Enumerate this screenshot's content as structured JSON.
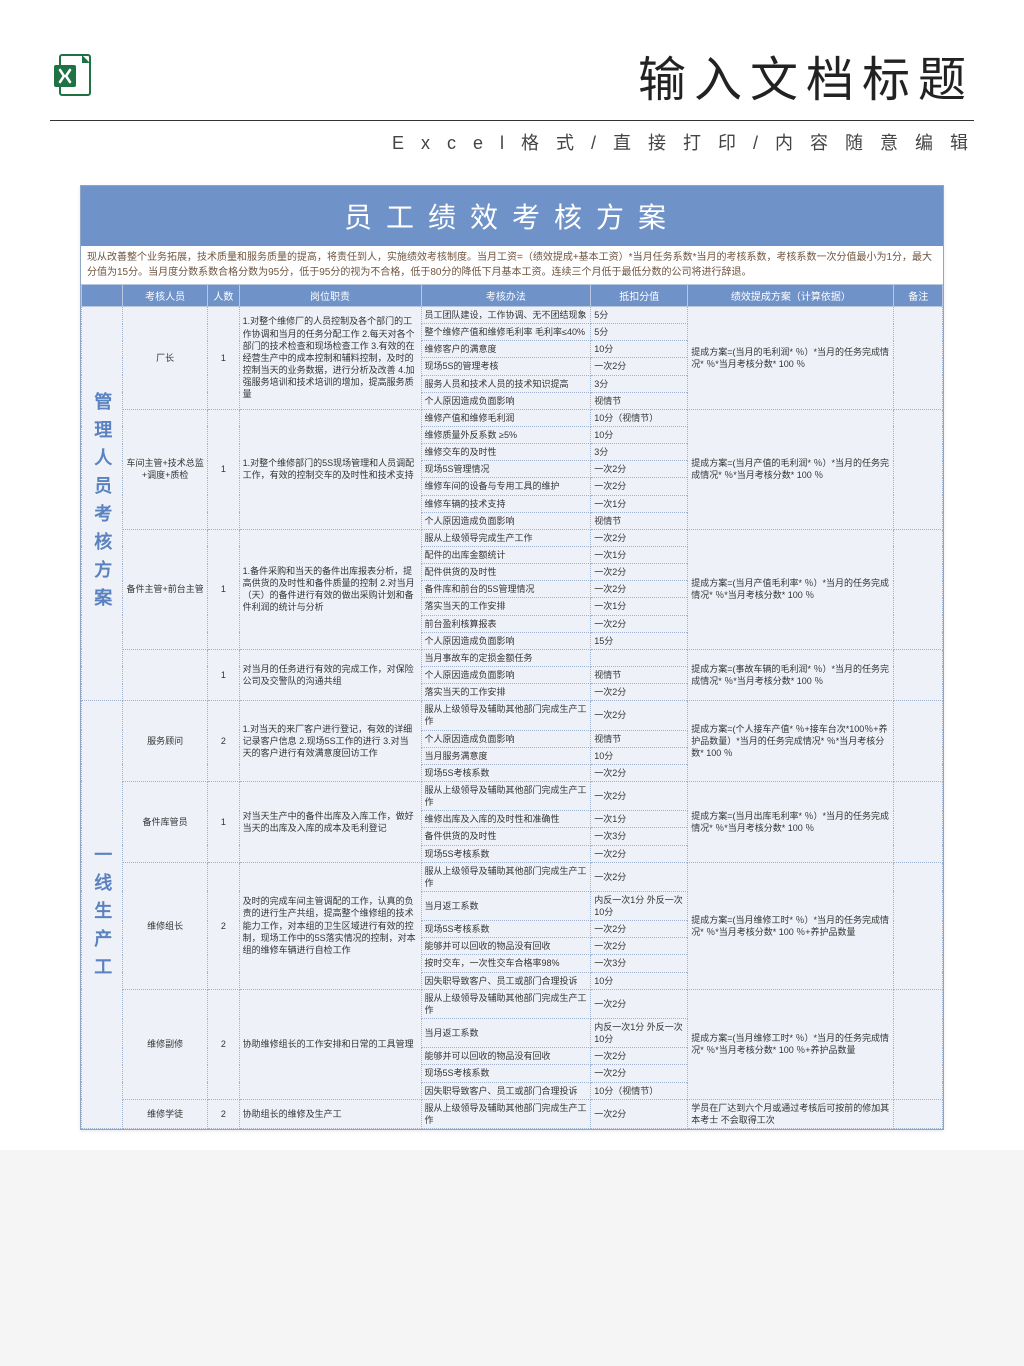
{
  "header": {
    "title": "输入文档标题",
    "subtitle": "E x c e l 格 式 / 直 接 打 印 / 内 容 随 意 编 辑"
  },
  "banner": "员工绩效考核方案",
  "intro": "现从改善整个业务拓展，技术质量和服务质量的提高，将责任到人，实施绩效考核制度。当月工资=（绩效提成+基本工资）*当月任务系数*当月的考核系数，考核系数一次分值最小为1分，最大分值为15分。当月度分数系数合格分数为95分，低于95分的视为不合格，低于80分的降低下月基本工资。连续三个月低于最低分数的公司将进行辞退。",
  "headers": [
    "考核人员",
    "人数",
    "岗位职责",
    "考核办法",
    "抵扣分值",
    "绩效提成方案（计算依据）",
    "备注"
  ],
  "sections": [
    {
      "group": "管理人员考核方案",
      "rows": [
        {
          "role": "厂长",
          "num": "1",
          "resp": "1.对整个维修厂的人员控制及各个部门的工作协调和当月的任务分配工作 2.每天对各个部门的技术检查和现场检查工作 3.有效的在经营生产中的成本控制和辅料控制，及时的控制当天的业务数据，进行分析及改善 4.加强服务培训和技术培训的增加，提高服务质量",
          "items": [
            [
              "员工团队建设，工作协调、无不团结现象",
              "5分"
            ],
            [
              "整个维修产值和维修毛利率 毛利率≤40%",
              "5分"
            ],
            [
              "维修客户的满意度",
              "10分"
            ],
            [
              "现场5S的管理考核",
              "一次2分"
            ],
            [
              "服务人员和技术人员的技术知识提高",
              "3分"
            ],
            [
              "个人原因造成负面影响",
              "视情节"
            ]
          ],
          "plan": "提成方案=(当月的毛利润* ％）*当月的任务完成情况* ％*当月考核分数* 100 ％"
        },
        {
          "role": "车间主管+技术总监+调度+质检",
          "num": "1",
          "resp": "1.对整个维修部门的5S现场管理和人员调配工作，有效的控制交车的及时性和技术支持",
          "items": [
            [
              "维修产值和维修毛利润",
              "10分（视情节）"
            ],
            [
              "维修质量外反系数 ≥5%",
              "10分"
            ],
            [
              "维修交车的及时性",
              "3分"
            ],
            [
              "现场5S管理情况",
              "一次2分"
            ],
            [
              "维修车间的设备与专用工具的维护",
              "一次2分"
            ],
            [
              "维修车辆的技术支持",
              "一次1分"
            ],
            [
              "个人原因造成负面影响",
              "视情节"
            ]
          ],
          "plan": "提成方案=(当月产值的毛利润* ％）*当月的任务完成情况* ％*当月考核分数* 100 ％"
        },
        {
          "role": "备件主管+前台主管",
          "num": "1",
          "resp": "1.备件采购和当天的备件出库报表分析，提高供货的及时性和备件质量的控制  2.对当月（天）的备件进行有效的做出采购计划和备件利润的统计与分析",
          "items": [
            [
              "服从上级领导完成生产工作",
              "一次2分"
            ],
            [
              "配件的出库金额统计",
              "一次1分"
            ],
            [
              "配件供货的及时性",
              "一次2分"
            ],
            [
              "备件库和前台的5S管理情况",
              "一次2分"
            ],
            [
              "落实当天的工作安排",
              "一次1分"
            ],
            [
              "前台盈利核算报表",
              "一次2分"
            ],
            [
              "个人原因造成负面影响",
              "15分"
            ]
          ],
          "plan": "提成方案=(当月产值毛利率* ％）*当月的任务完成情况* ％*当月考核分数* 100 ％"
        },
        {
          "role": "",
          "num": "1",
          "resp": "对当月的任务进行有效的完成工作，对保险公司及交警队的沟通共组",
          "items": [
            [
              "当月事故车的定损金额任务",
              ""
            ],
            [
              "个人原因造成负面影响",
              "视情节"
            ],
            [
              "落实当天的工作安排",
              "一次2分"
            ]
          ],
          "plan": "提成方案=(事故车辆的毛利润* ％）*当月的任务完成情况* ％*当月考核分数* 100 ％"
        }
      ]
    },
    {
      "group": "一线生产工",
      "rows": [
        {
          "role": "服务顾问",
          "num": "2",
          "resp": "1.对当天的来厂客户进行登记，有效的详细记录客户信息  2.现场5S工作的进行  3.对当天的客户进行有效满意度回访工作",
          "items": [
            [
              "服从上级领导及辅助其他部门完成生产工作",
              "一次2分"
            ],
            [
              "个人原因造成负面影响",
              "视情节"
            ],
            [
              "当月服务满意度",
              "10分"
            ],
            [
              "现场5S考核系数",
              "一次2分"
            ]
          ],
          "plan": "提成方案=(个人接车产值* ％+接车台次*100％+养护品数量）*当月的任务完成情况* ％*当月考核分数* 100 ％"
        },
        {
          "role": "备件库管员",
          "num": "1",
          "resp": "对当天生产中的备件出库及入库工作，做好当天的出库及入库的成本及毛利登记",
          "items": [
            [
              "服从上级领导及辅助其他部门完成生产工作",
              "一次2分"
            ],
            [
              "维修出库及入库的及时性和准确性",
              "一次1分"
            ],
            [
              "备件供货的及时性",
              "一次3分"
            ],
            [
              "现场5S考核系数",
              "一次2分"
            ]
          ],
          "plan": "提成方案=(当月出库毛利率* ％）*当月的任务完成情况* ％*当月考核分数* 100 ％"
        },
        {
          "role": "维修组长",
          "num": "2",
          "resp": "及时的完成车间主管调配的工作，认真的负责的进行生产共组，提高整个维修组的技术能力工作，对本组的卫生区域进行有效的控制，现场工作中的5S落实情况的控制，对本组的维修车辆进行自检工作",
          "items": [
            [
              "服从上级领导及辅助其他部门完成生产工作",
              "一次2分"
            ],
            [
              "当月返工系数",
              "内反一次1分 外反一次10分"
            ],
            [
              "现场5S考核系数",
              "一次2分"
            ],
            [
              "能够并可以回收的物品没有回收",
              "一次2分"
            ],
            [
              "按时交车，一次性交车合格率98%",
              "一次3分"
            ],
            [
              "因失职导致客户、员工或部门合理投诉",
              "10分"
            ]
          ],
          "plan": "提成方案=(当月维修工时* ％）*当月的任务完成情况* ％*当月考核分数* 100 ％+养护品数量"
        },
        {
          "role": "维修副修",
          "num": "2",
          "resp": "协助维修组长的工作安排和日常的工具管理",
          "items": [
            [
              "服从上级领导及辅助其他部门完成生产工作",
              "一次2分"
            ],
            [
              "当月返工系数",
              "内反一次1分 外反一次10分"
            ],
            [
              "能够并可以回收的物品没有回收",
              "一次2分"
            ],
            [
              "现场5S考核系数",
              "一次2分"
            ],
            [
              "因失职导致客户、员工或部门合理投诉",
              "10分（视情节）"
            ]
          ],
          "plan": "提成方案=(当月维修工时* ％）*当月的任务完成情况* ％*当月考核分数* 100 ％+养护品数量"
        },
        {
          "role": "维修学徒",
          "num": "2",
          "resp": "协助组长的维修及生产工",
          "items": [
            [
              "服从上级领导及辅助其他部门完成生产工作",
              "一次2分"
            ]
          ],
          "plan": "学员在厂达到六个月或通过考核后可按前的修加其本考士  不会取得工次"
        }
      ]
    }
  ]
}
